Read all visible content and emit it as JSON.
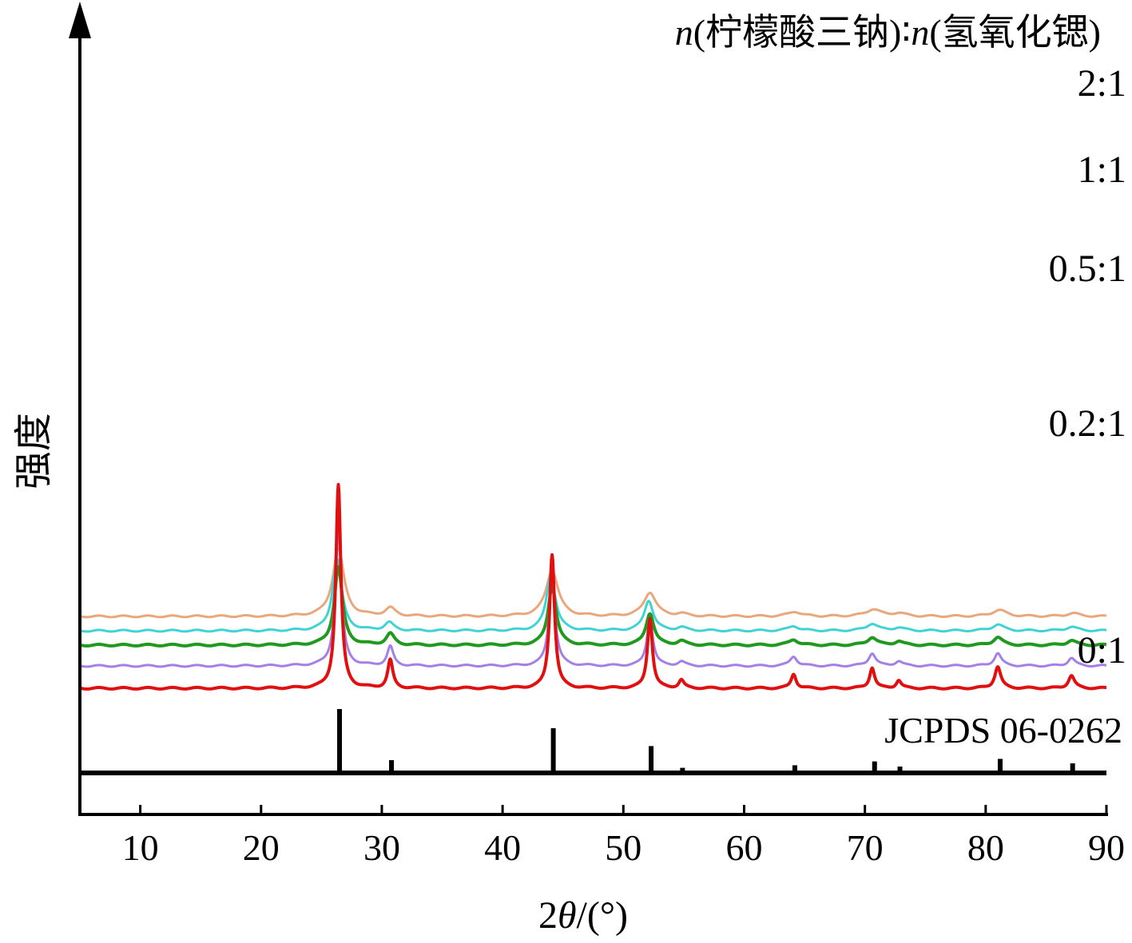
{
  "chart_data": {
    "type": "line",
    "title": "",
    "legend_title": {
      "prefix": "n",
      "part1": "(柠檬酸三钠)",
      "sep": "∶",
      "n2": "n",
      "part2": "(氢氧化锶)"
    },
    "xlabel": {
      "prefix": "2",
      "theta": "θ",
      "suffix": "/(°)"
    },
    "ylabel": "强度",
    "xlim": [
      5,
      90
    ],
    "xticks": [
      10,
      20,
      30,
      40,
      50,
      60,
      70,
      80,
      90
    ],
    "grid": false,
    "series": [
      {
        "name": "2:1",
        "color": "#e8a77c",
        "offset": 0.9,
        "peaks": [
          [
            26.4,
            0.85,
            0.55
          ],
          [
            30.7,
            0.1,
            0.5
          ],
          [
            44.1,
            0.58,
            0.6
          ],
          [
            52.2,
            0.3,
            0.6
          ],
          [
            54.8,
            0.03,
            0.5
          ],
          [
            64.2,
            0.06,
            0.6
          ],
          [
            70.7,
            0.09,
            0.7
          ],
          [
            72.8,
            0.04,
            0.6
          ],
          [
            81.1,
            0.08,
            0.7
          ],
          [
            87.2,
            0.04,
            0.6
          ]
        ]
      },
      {
        "name": "1:1",
        "color": "#3fd3d6",
        "offset": 0.72,
        "peaks": [
          [
            26.3,
            0.9,
            0.45
          ],
          [
            30.6,
            0.1,
            0.45
          ],
          [
            44.0,
            0.7,
            0.45
          ],
          [
            52.1,
            0.38,
            0.45
          ],
          [
            54.8,
            0.04,
            0.45
          ],
          [
            64.1,
            0.06,
            0.5
          ],
          [
            70.6,
            0.09,
            0.55
          ],
          [
            72.8,
            0.04,
            0.5
          ],
          [
            81.0,
            0.08,
            0.55
          ],
          [
            87.1,
            0.05,
            0.55
          ]
        ]
      },
      {
        "name": "0.5:1",
        "color": "#1f9a1f",
        "offset": 0.54,
        "peaks": [
          [
            26.4,
            0.98,
            0.4
          ],
          [
            30.7,
            0.14,
            0.4
          ],
          [
            44.1,
            0.74,
            0.4
          ],
          [
            52.2,
            0.4,
            0.4
          ],
          [
            54.8,
            0.05,
            0.4
          ],
          [
            64.1,
            0.07,
            0.45
          ],
          [
            70.6,
            0.1,
            0.45
          ],
          [
            72.8,
            0.05,
            0.4
          ],
          [
            81.0,
            0.1,
            0.45
          ],
          [
            87.1,
            0.06,
            0.45
          ]
        ]
      },
      {
        "name": "0.2:1",
        "color": "#a47fe8",
        "offset": 0.28,
        "peaks": [
          [
            26.4,
            1.72,
            0.3
          ],
          [
            30.7,
            0.24,
            0.3
          ],
          [
            44.1,
            1.16,
            0.3
          ],
          [
            52.2,
            0.6,
            0.3
          ],
          [
            54.8,
            0.05,
            0.35
          ],
          [
            64.1,
            0.12,
            0.35
          ],
          [
            70.6,
            0.16,
            0.35
          ],
          [
            72.8,
            0.06,
            0.35
          ],
          [
            81.0,
            0.16,
            0.35
          ],
          [
            87.1,
            0.1,
            0.35
          ]
        ]
      },
      {
        "name": "0:1",
        "color": "#e01010",
        "offset": 0.0,
        "peaks": [
          [
            26.4,
            2.55,
            0.25
          ],
          [
            30.7,
            0.35,
            0.25
          ],
          [
            44.1,
            1.68,
            0.25
          ],
          [
            52.2,
            0.88,
            0.25
          ],
          [
            54.8,
            0.1,
            0.25
          ],
          [
            64.1,
            0.18,
            0.25
          ],
          [
            70.6,
            0.26,
            0.25
          ],
          [
            72.8,
            0.1,
            0.25
          ],
          [
            81.0,
            0.27,
            0.3
          ],
          [
            87.1,
            0.16,
            0.3
          ]
        ]
      }
    ],
    "reference": {
      "name": "JCPDS 06-0262",
      "color": "#000000",
      "lines": [
        [
          26.5,
          1.0
        ],
        [
          30.8,
          0.2
        ],
        [
          44.2,
          0.7
        ],
        [
          52.3,
          0.42
        ],
        [
          54.9,
          0.08
        ],
        [
          64.2,
          0.12
        ],
        [
          70.8,
          0.18
        ],
        [
          72.9,
          0.1
        ],
        [
          81.2,
          0.22
        ],
        [
          87.2,
          0.15
        ]
      ]
    }
  }
}
